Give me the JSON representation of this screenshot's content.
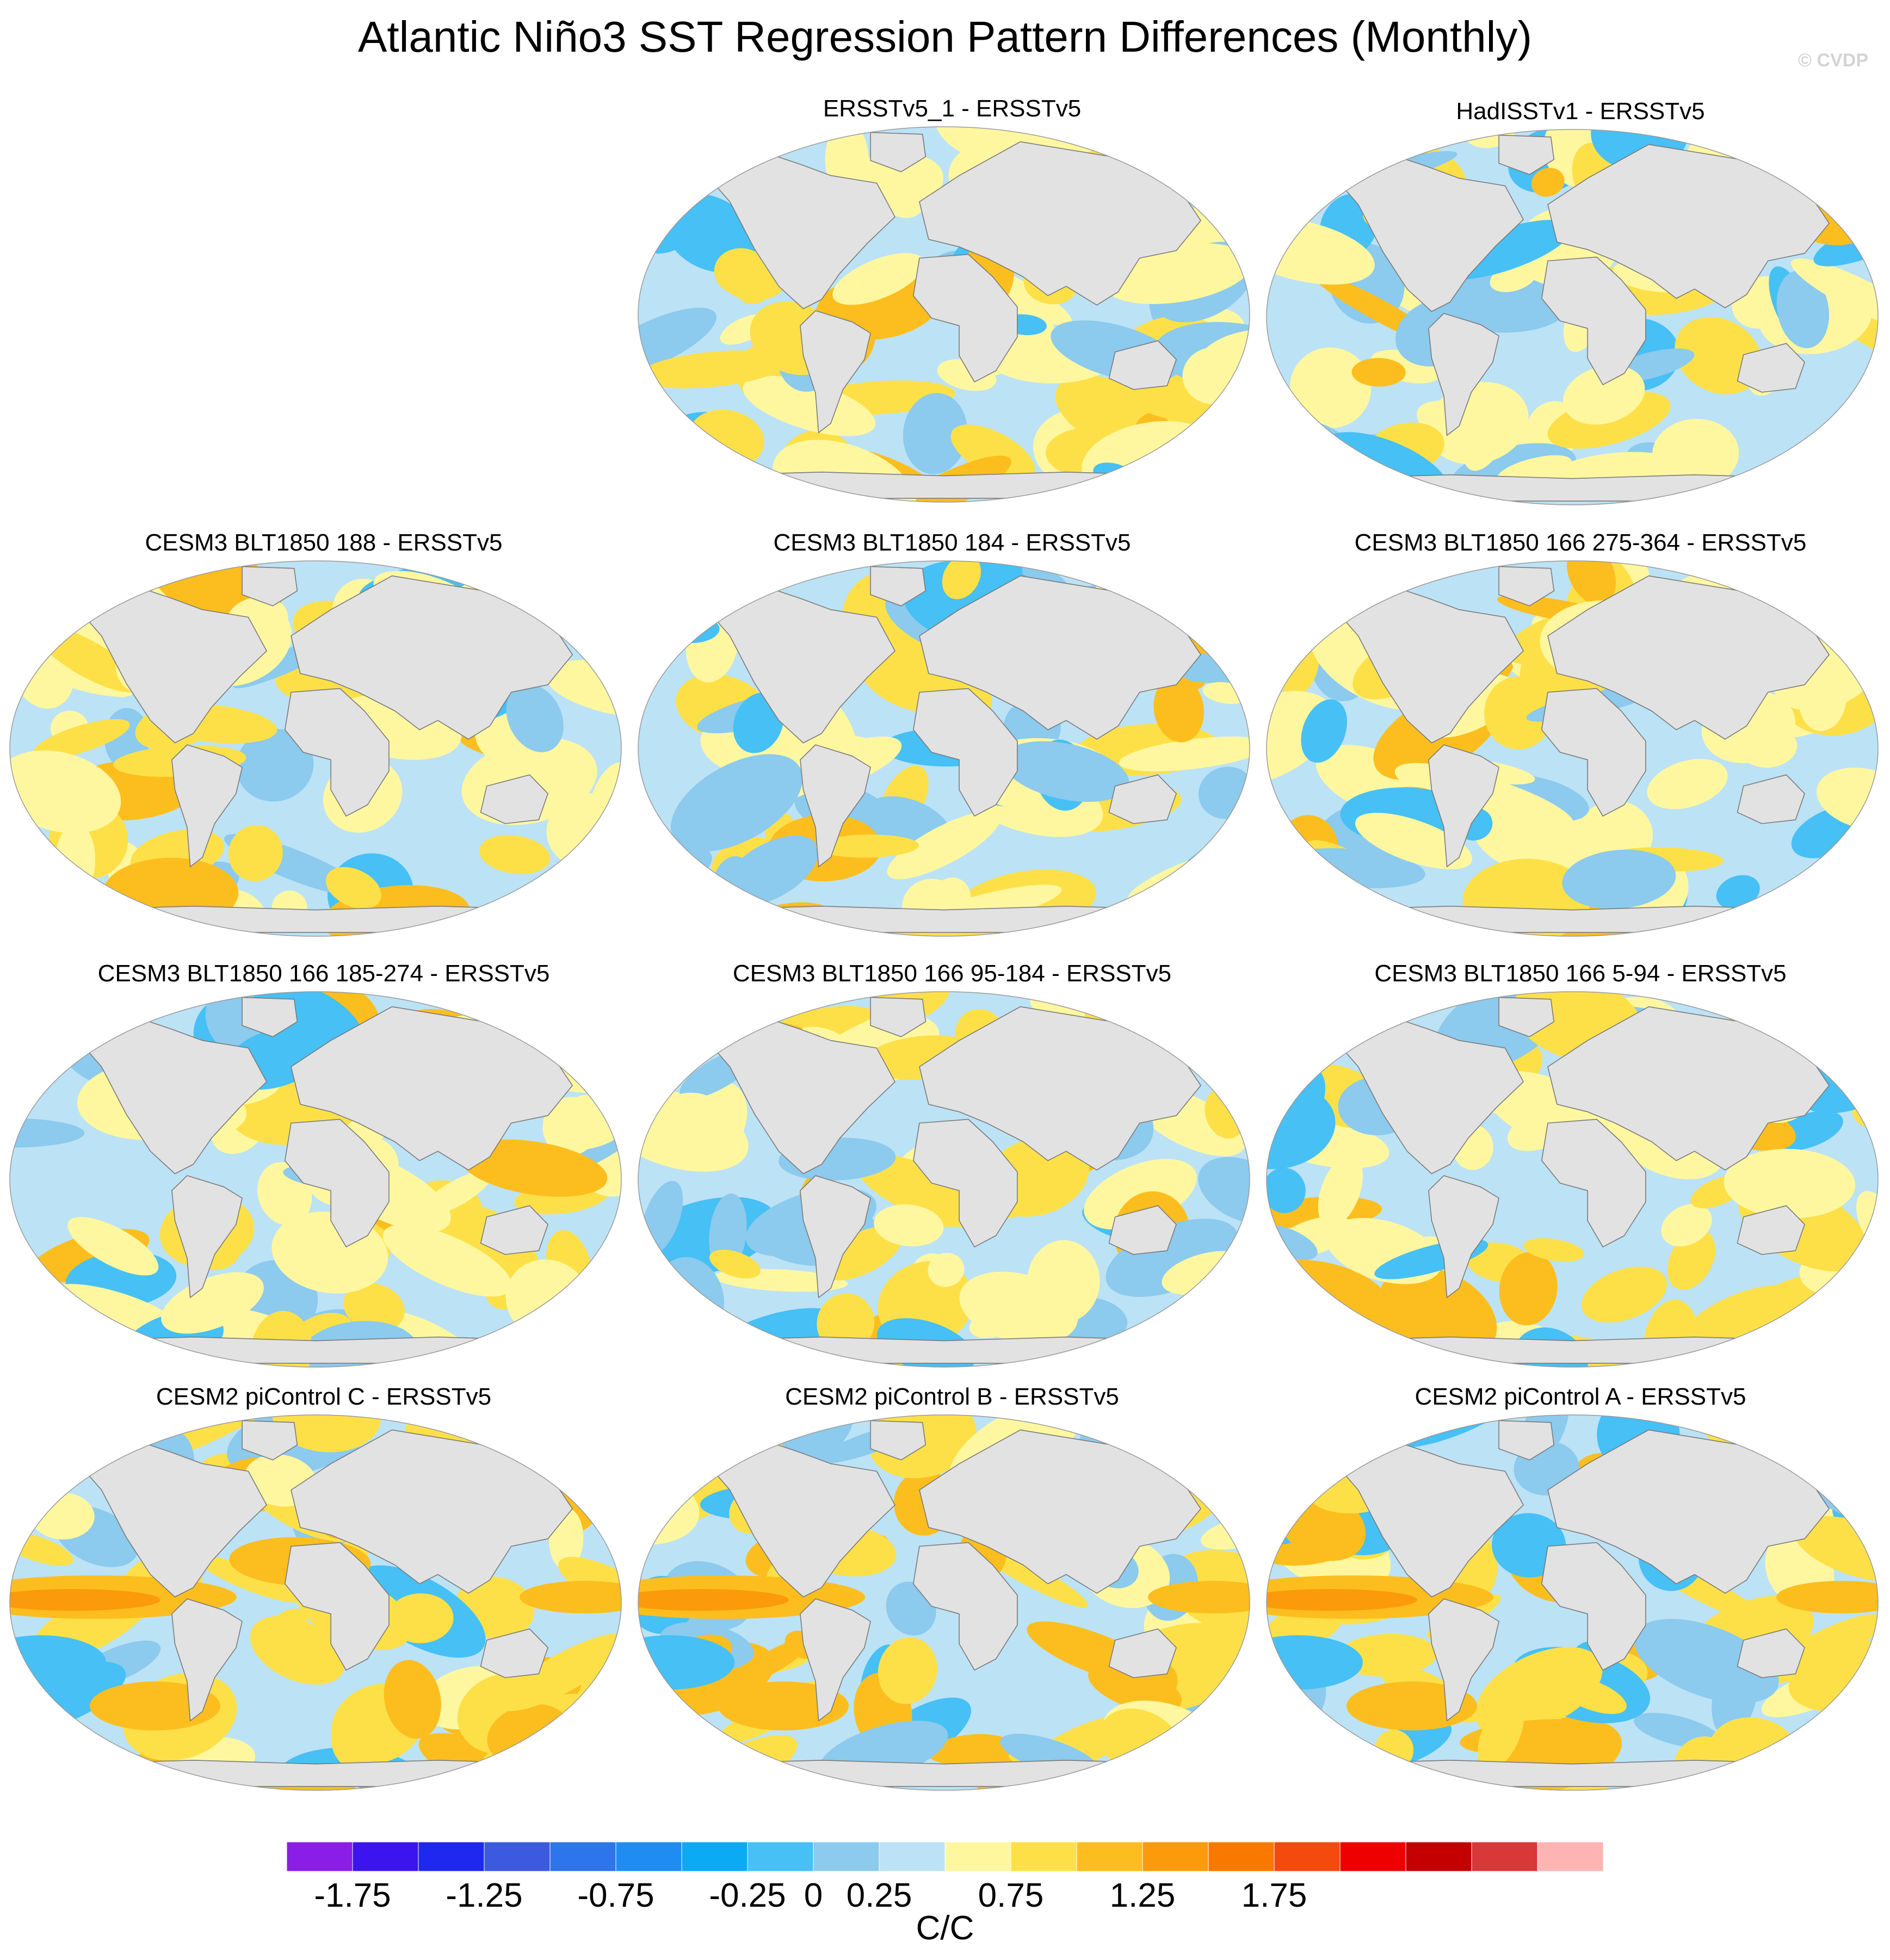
{
  "title": "Atlantic Niño3 SST Regression Pattern Differences (Monthly)",
  "watermark": "© CVDP",
  "panels": [
    {
      "title": "ERSSTv5_1 - ERSSTv5",
      "pattern": "obs-a"
    },
    {
      "title": "HadISSTv1 - ERSSTv5",
      "pattern": "obs-b"
    },
    {
      "title": "CESM3 BLT1850 188 - ERSSTv5",
      "pattern": "model-a"
    },
    {
      "title": "CESM3 BLT1850 184 - ERSSTv5",
      "pattern": "model-b"
    },
    {
      "title": "CESM3 BLT1850 166 275-364 - ERSSTv5",
      "pattern": "model-c"
    },
    {
      "title": "CESM3 BLT1850 166 185-274 - ERSSTv5",
      "pattern": "model-d"
    },
    {
      "title": "CESM3 BLT1850 166 95-184 - ERSSTv5",
      "pattern": "model-e"
    },
    {
      "title": "CESM3 BLT1850 166 5-94 - ERSSTv5",
      "pattern": "model-f"
    },
    {
      "title": "CESM2 piControl C - ERSSTv5",
      "pattern": "cesm2-c"
    },
    {
      "title": "CESM2 piControl B - ERSSTv5",
      "pattern": "cesm2-b"
    },
    {
      "title": "CESM2 piControl A - ERSSTv5",
      "pattern": "cesm2-a"
    }
  ],
  "colorbar": {
    "colors": [
      "#8a1ee6",
      "#3c14f0",
      "#1e28ee",
      "#3c5ae0",
      "#2e74ea",
      "#1e8cf0",
      "#0aaaf5",
      "#46c0f5",
      "#8ccaee",
      "#bce2f6",
      "#fff7a0",
      "#fde048",
      "#fcbe1e",
      "#fb9a0a",
      "#f97800",
      "#f44a0e",
      "#ee0000",
      "#c40000",
      "#d83838",
      "#ffb4b4"
    ],
    "tick_labels": [
      "-1.75",
      "-1.25",
      "-0.75",
      "-0.25",
      "0",
      "0.25",
      "0.75",
      "1.25",
      "1.75"
    ],
    "units": "C/C"
  }
}
